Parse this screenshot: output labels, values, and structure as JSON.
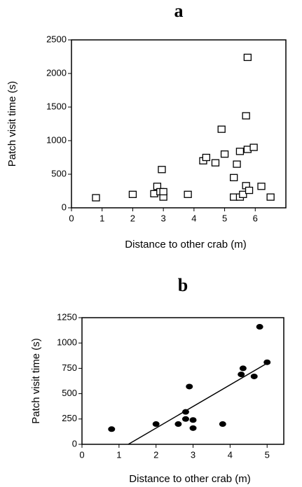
{
  "chart_data": [
    {
      "type": "scatter",
      "title": "a",
      "x_label": "Distance to other crab (m)",
      "y_label": "Patch visit time (s)",
      "marker": "square",
      "color": "#000000",
      "x": [
        0.8,
        2.0,
        2.7,
        2.8,
        2.9,
        2.95,
        3.0,
        3.0,
        3.8,
        4.3,
        4.4,
        4.7,
        4.9,
        5.0,
        5.3,
        5.3,
        5.4,
        5.5,
        5.5,
        5.6,
        5.7,
        5.75,
        5.7,
        5.75,
        5.8,
        5.95,
        6.2,
        6.5
      ],
      "y": [
        150,
        200,
        210,
        320,
        240,
        570,
        160,
        240,
        200,
        700,
        750,
        670,
        1170,
        800,
        160,
        450,
        650,
        840,
        160,
        200,
        1370,
        2240,
        330,
        870,
        260,
        900,
        320,
        160
      ],
      "xlim": [
        0,
        7
      ],
      "xticks": [
        0,
        1,
        2,
        3,
        4,
        5,
        6
      ],
      "ylim": [
        0,
        2500
      ],
      "yticks": [
        0,
        500,
        1000,
        1500,
        2000,
        2500
      ]
    },
    {
      "type": "scatter",
      "title": "b",
      "x_label": "Distance to other crab (m)",
      "y_label": "Patch visit time (s)",
      "marker": "circle",
      "color": "#000000",
      "x": [
        0.8,
        2.0,
        2.6,
        2.8,
        2.8,
        2.9,
        3.0,
        3.0,
        3.8,
        4.3,
        4.35,
        4.65,
        4.8,
        5.0
      ],
      "y": [
        150,
        200,
        200,
        320,
        250,
        570,
        240,
        160,
        200,
        690,
        750,
        670,
        1160,
        810
      ],
      "fit": {
        "x": [
          1.25,
          5.0
        ],
        "y": [
          0,
          800
        ]
      },
      "xlim": [
        0,
        5.45
      ],
      "xticks": [
        0,
        1,
        2,
        3,
        4,
        5
      ],
      "ylim": [
        0,
        1250
      ],
      "yticks": [
        0,
        250,
        500,
        750,
        1000,
        1250
      ]
    }
  ]
}
